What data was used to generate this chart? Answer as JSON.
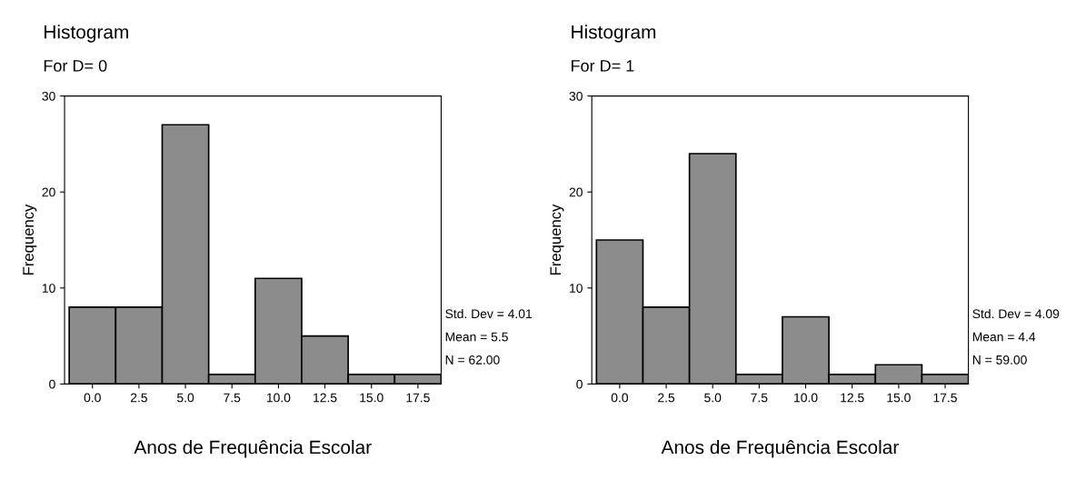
{
  "chart_data": [
    {
      "type": "histogram",
      "title": "Histogram",
      "subtitle": "For D= 0",
      "xlabel": "Anos de Frequência Escolar",
      "ylabel": "Frequency",
      "bins": [
        -1.25,
        1.25,
        3.75,
        6.25,
        8.75,
        11.25,
        13.75,
        16.25,
        18.75
      ],
      "values": [
        8,
        8,
        27,
        1,
        11,
        5,
        1,
        1
      ],
      "color": "#8c8c8c",
      "xlim": [
        -1.5,
        18.75
      ],
      "ylim": [
        0,
        30
      ],
      "xticks": [
        {
          "value": 0,
          "label": "0.0"
        },
        {
          "value": 2.5,
          "label": "2.5"
        },
        {
          "value": 5,
          "label": "5.0"
        },
        {
          "value": 7.5,
          "label": "7.5"
        },
        {
          "value": 10,
          "label": "10.0"
        },
        {
          "value": 12.5,
          "label": "12.5"
        },
        {
          "value": 15,
          "label": "15.0"
        },
        {
          "value": 17.5,
          "label": "17.5"
        }
      ],
      "yticks": [
        0,
        10,
        20,
        30
      ],
      "annotations": [
        "Std. Dev = 4.01",
        "Mean = 5.5",
        "N = 62.00"
      ]
    },
    {
      "type": "histogram",
      "title": "Histogram",
      "subtitle": "For D= 1",
      "xlabel": "Anos de Frequência Escolar",
      "ylabel": "Frequency",
      "bins": [
        -1.25,
        1.25,
        3.75,
        6.25,
        8.75,
        11.25,
        13.75,
        16.25,
        18.75
      ],
      "values": [
        15,
        8,
        24,
        1,
        7,
        1,
        2,
        1
      ],
      "color": "#8c8c8c",
      "xlim": [
        -1.5,
        18.75
      ],
      "ylim": [
        0,
        30
      ],
      "xticks": [
        {
          "value": 0,
          "label": "0.0"
        },
        {
          "value": 2.5,
          "label": "2.5"
        },
        {
          "value": 5,
          "label": "5.0"
        },
        {
          "value": 7.5,
          "label": "7.5"
        },
        {
          "value": 10,
          "label": "10.0"
        },
        {
          "value": 12.5,
          "label": "12.5"
        },
        {
          "value": 15,
          "label": "15.0"
        },
        {
          "value": 17.5,
          "label": "17.5"
        }
      ],
      "yticks": [
        0,
        10,
        20,
        30
      ],
      "annotations": [
        "Std. Dev = 4.09",
        "Mean = 4.4",
        "N = 59.00"
      ]
    }
  ]
}
